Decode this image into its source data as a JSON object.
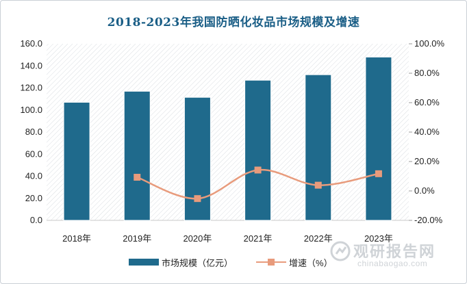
{
  "chart_data": {
    "type": "bar",
    "title": "2018-2023年我国防晒化妆品市场规模及增速",
    "categories": [
      "2018年",
      "2019年",
      "2020年",
      "2021年",
      "2022年",
      "2023年"
    ],
    "series": [
      {
        "name": "市场规模（亿元）",
        "type": "bar",
        "axis": "left",
        "color": "#1f6a8c",
        "values": [
          107,
          117,
          111.5,
          127,
          132,
          148
        ]
      },
      {
        "name": "增速（%）",
        "type": "line",
        "axis": "right",
        "color": "#e89b7c",
        "values": [
          null,
          9.3,
          -5.2,
          14.2,
          3.9,
          11.7
        ]
      }
    ],
    "y_left": {
      "ylim": [
        0,
        160
      ],
      "ticks": [
        "0.0",
        "20.0",
        "40.0",
        "60.0",
        "80.0",
        "100.0",
        "120.0",
        "140.0",
        "160.0"
      ]
    },
    "y_right": {
      "ylim": [
        -20,
        100
      ],
      "ticks": [
        "-20.0%",
        "0.0%",
        "20.0%",
        "40.0%",
        "60.0%",
        "80.0%",
        "100.0%"
      ]
    },
    "legend_position": "bottom",
    "plot_background": "diagonal-hatch"
  },
  "watermark": {
    "cn": "观研报告网",
    "en": "chinabaogao.com"
  }
}
